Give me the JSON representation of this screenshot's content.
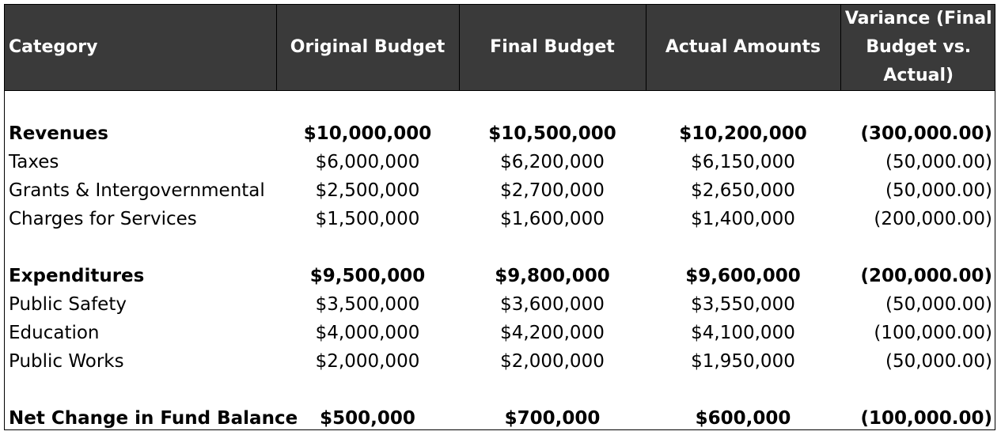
{
  "headers": {
    "category": "Category",
    "original": "Original Budget",
    "final": "Final Budget",
    "actual": "Actual Amounts",
    "variance": "Variance (Final Budget vs. Actual)"
  },
  "revenues": {
    "total": {
      "category": "Revenues",
      "original": "$10,000,000",
      "final": "$10,500,000",
      "actual": "$10,200,000",
      "variance": "(300,000.00)"
    },
    "items": [
      {
        "category": "Taxes",
        "original": "$6,000,000",
        "final": "$6,200,000",
        "actual": "$6,150,000",
        "variance": "(50,000.00)"
      },
      {
        "category": "Grants & Intergovernmental",
        "original": "$2,500,000",
        "final": "$2,700,000",
        "actual": "$2,650,000",
        "variance": "(50,000.00)"
      },
      {
        "category": "Charges for Services",
        "original": "$1,500,000",
        "final": "$1,600,000",
        "actual": "$1,400,000",
        "variance": "(200,000.00)"
      }
    ]
  },
  "expenditures": {
    "total": {
      "category": "Expenditures",
      "original": "$9,500,000",
      "final": "$9,800,000",
      "actual": "$9,600,000",
      "variance": "(200,000.00)"
    },
    "items": [
      {
        "category": "Public Safety",
        "original": "$3,500,000",
        "final": "$3,600,000",
        "actual": "$3,550,000",
        "variance": "(50,000.00)"
      },
      {
        "category": "Education",
        "original": "$4,000,000",
        "final": "$4,200,000",
        "actual": "$4,100,000",
        "variance": "(100,000.00)"
      },
      {
        "category": "Public Works",
        "original": "$2,000,000",
        "final": "$2,000,000",
        "actual": "$1,950,000",
        "variance": "(50,000.00)"
      }
    ]
  },
  "net_change": {
    "category": "Net Change in Fund Balance",
    "original": "$500,000",
    "final": "$700,000",
    "actual": "$600,000",
    "variance": "(100,000.00)"
  },
  "colors": {
    "header_background": "#3a3a3a",
    "header_text": "#ffffff",
    "body_text": "#000000"
  }
}
